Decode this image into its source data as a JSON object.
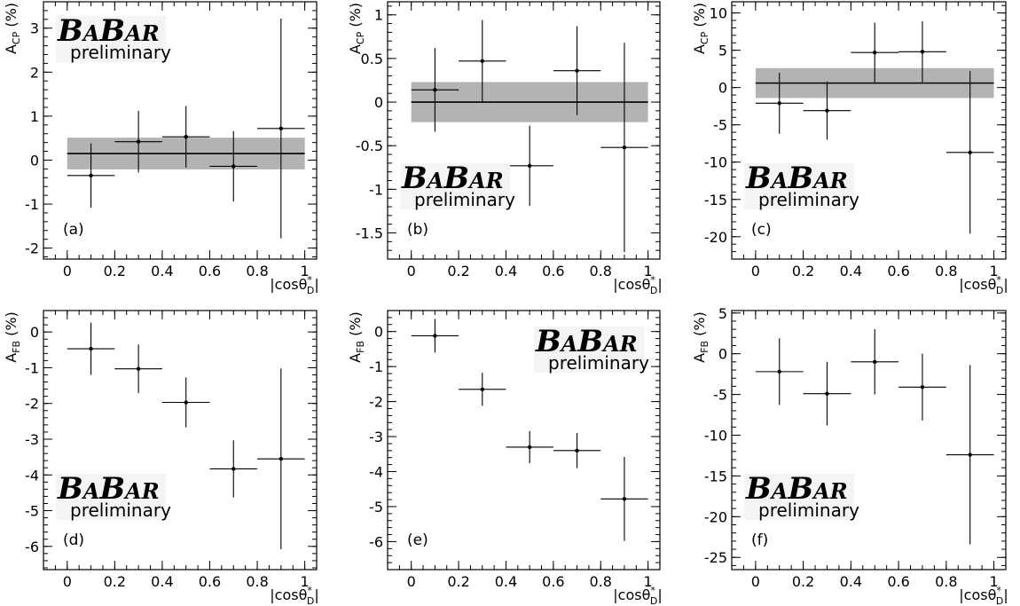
{
  "chart_data": [
    {
      "type": "scatter",
      "panel_tag": "(a)",
      "x": [
        0.1,
        0.3,
        0.5,
        0.7,
        0.9
      ],
      "xerr": [
        0.1,
        0.1,
        0.1,
        0.1,
        0.1
      ],
      "y": [
        -0.35,
        0.42,
        0.53,
        -0.14,
        0.72
      ],
      "yerr": [
        0.73,
        0.7,
        0.7,
        0.8,
        2.5
      ],
      "fit": {
        "value": 0.15,
        "err": 0.36
      },
      "xlim": [
        -0.1,
        1.05
      ],
      "ylim": [
        -2.25,
        3.6
      ],
      "xticks": [
        "0",
        "0.2",
        "0.4",
        "0.6",
        "0.8",
        "1"
      ],
      "yticks": [
        "-2",
        "-1",
        "0",
        "1",
        "2",
        "3"
      ],
      "xlabel": "|cosθ*D|",
      "ylabel": "ACP (%)",
      "logo": {
        "name": "BABAR",
        "sub": "preliminary",
        "pos": "top-left"
      }
    },
    {
      "type": "scatter",
      "panel_tag": "(b)",
      "x": [
        0.1,
        0.3,
        0.5,
        0.7,
        0.9
      ],
      "xerr": [
        0.1,
        0.1,
        0.1,
        0.1,
        0.1
      ],
      "y": [
        0.14,
        0.47,
        -0.73,
        0.36,
        -0.52
      ],
      "yerr": [
        0.48,
        0.47,
        0.46,
        0.51,
        1.2
      ],
      "fit": {
        "value": 0.0,
        "err": 0.23
      },
      "xlim": [
        -0.1,
        1.05
      ],
      "ylim": [
        -1.8,
        1.15
      ],
      "xticks": [
        "0",
        "0.2",
        "0.4",
        "0.6",
        "0.8",
        "1"
      ],
      "yticks": [
        "-1.5",
        "-1",
        "-0.5",
        "0",
        "0.5",
        "1"
      ],
      "xlabel": "|cosθ*D|",
      "ylabel": "ACP (%)",
      "logo": {
        "name": "BABAR",
        "sub": "preliminary",
        "pos": "bottom-left"
      }
    },
    {
      "type": "scatter",
      "panel_tag": "(c)",
      "x": [
        0.1,
        0.3,
        0.5,
        0.7,
        0.9
      ],
      "xerr": [
        0.1,
        0.1,
        0.1,
        0.1,
        0.1
      ],
      "y": [
        -2.1,
        -3.1,
        4.7,
        4.8,
        -8.7
      ],
      "yerr": [
        4.1,
        3.9,
        4.0,
        4.1,
        10.9
      ],
      "fit": {
        "value": 0.6,
        "err": 2.0
      },
      "xlim": [
        -0.1,
        1.05
      ],
      "ylim": [
        -23,
        11.5
      ],
      "xticks": [
        "0",
        "0.2",
        "0.4",
        "0.6",
        "0.8",
        "1"
      ],
      "yticks": [
        "-20",
        "-15",
        "-10",
        "-5",
        "0",
        "5",
        "10"
      ],
      "xlabel": "|cosθ*D|",
      "ylabel": "ACP (%)",
      "logo": {
        "name": "BABAR",
        "sub": "preliminary",
        "pos": "bottom-left"
      }
    },
    {
      "type": "scatter",
      "panel_tag": "(d)",
      "x": [
        0.1,
        0.3,
        0.5,
        0.7,
        0.9
      ],
      "xerr": [
        0.1,
        0.1,
        0.1,
        0.1,
        0.1
      ],
      "y": [
        -0.47,
        -1.03,
        -1.97,
        -3.83,
        -3.55
      ],
      "yerr": [
        0.73,
        0.68,
        0.7,
        0.8,
        2.53
      ],
      "xlim": [
        -0.1,
        1.05
      ],
      "ylim": [
        -6.65,
        0.6
      ],
      "xticks": [
        "0",
        "0.2",
        "0.4",
        "0.6",
        "0.8",
        "1"
      ],
      "yticks": [
        "-6",
        "-5",
        "-4",
        "-3",
        "-2",
        "-1",
        "0"
      ],
      "xlabel": "|cosθ*D|",
      "ylabel": "AFB (%)",
      "logo": {
        "name": "BABAR",
        "sub": "preliminary",
        "pos": "bottom-left"
      }
    },
    {
      "type": "scatter",
      "panel_tag": "(e)",
      "x": [
        0.1,
        0.3,
        0.5,
        0.7,
        0.9
      ],
      "xerr": [
        0.1,
        0.1,
        0.1,
        0.1,
        0.1
      ],
      "y": [
        -0.12,
        -1.65,
        -3.3,
        -3.4,
        -4.78
      ],
      "yerr": [
        0.48,
        0.47,
        0.46,
        0.5,
        1.2
      ],
      "xlim": [
        -0.1,
        1.05
      ],
      "ylim": [
        -6.8,
        0.6
      ],
      "xticks": [
        "0",
        "0.2",
        "0.4",
        "0.6",
        "0.8",
        "1"
      ],
      "yticks": [
        "-6",
        "-5",
        "-4",
        "-3",
        "-2",
        "-1",
        "0"
      ],
      "xlabel": "|cosθ*D|",
      "ylabel": "AFB (%)",
      "logo": {
        "name": "BABAR",
        "sub": "preliminary",
        "pos": "top-right"
      }
    },
    {
      "type": "scatter",
      "panel_tag": "(f)",
      "x": [
        0.1,
        0.3,
        0.5,
        0.7,
        0.9
      ],
      "xerr": [
        0.1,
        0.1,
        0.1,
        0.1,
        0.1
      ],
      "y": [
        -2.2,
        -4.9,
        -1.0,
        -4.1,
        -12.4
      ],
      "yerr": [
        4.1,
        3.9,
        4.0,
        4.1,
        11.0
      ],
      "xlim": [
        -0.1,
        1.05
      ],
      "ylim": [
        -26.5,
        5.3
      ],
      "xticks": [
        "0",
        "0.2",
        "0.4",
        "0.6",
        "0.8",
        "1"
      ],
      "yticks": [
        "-25",
        "-20",
        "-15",
        "-10",
        "-5",
        "0",
        "5"
      ],
      "xlabel": "|cosθ*D|",
      "ylabel": "AFB (%)",
      "logo": {
        "name": "BABAR",
        "sub": "preliminary",
        "pos": "bottom-left"
      }
    }
  ]
}
